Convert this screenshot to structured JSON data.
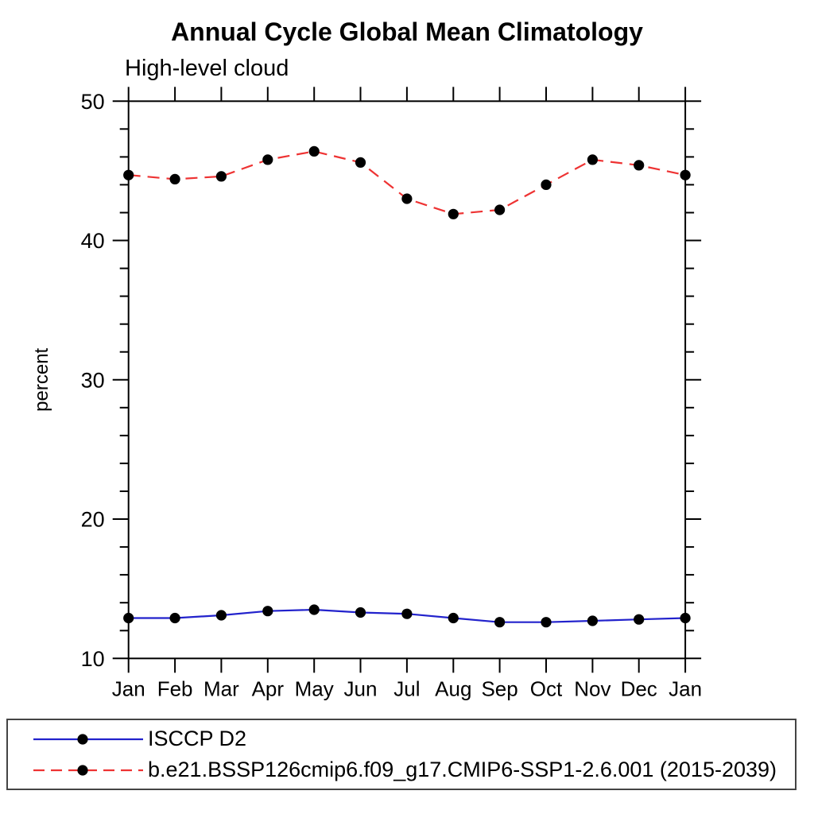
{
  "figure": {
    "background": "#ffffff",
    "axis_color": "#000000",
    "marker_color": "#000000",
    "legend_border_color": "#444444"
  },
  "chart_data": {
    "type": "line",
    "title": "Annual Cycle Global Mean Climatology",
    "subtitle": "High-level cloud",
    "xlabel": "",
    "ylabel": "percent",
    "categories": [
      "Jan",
      "Feb",
      "Mar",
      "Apr",
      "May",
      "Jun",
      "Jul",
      "Aug",
      "Sep",
      "Oct",
      "Nov",
      "Dec",
      "Jan"
    ],
    "ylim": [
      10,
      50
    ],
    "y_major_ticks": [
      10,
      20,
      30,
      40,
      50
    ],
    "y_minor_step": 2,
    "grid": false,
    "legend_position": "bottom",
    "series": [
      {
        "name": "ISCCP D2",
        "color": "#2222cc",
        "style": "solid",
        "marker": "dot",
        "values": [
          12.9,
          12.9,
          13.1,
          13.4,
          13.5,
          13.3,
          13.2,
          12.9,
          12.6,
          12.6,
          12.7,
          12.8,
          12.9
        ]
      },
      {
        "name": "b.e21.BSSP126cmip6.f09_g17.CMIP6-SSP1-2.6.001 (2015-2039)",
        "color": "#ee3333",
        "style": "dashed",
        "marker": "dot",
        "values": [
          44.7,
          44.4,
          44.6,
          45.8,
          46.4,
          45.6,
          43.0,
          41.9,
          42.2,
          44.0,
          45.8,
          45.4,
          44.7
        ]
      }
    ]
  }
}
